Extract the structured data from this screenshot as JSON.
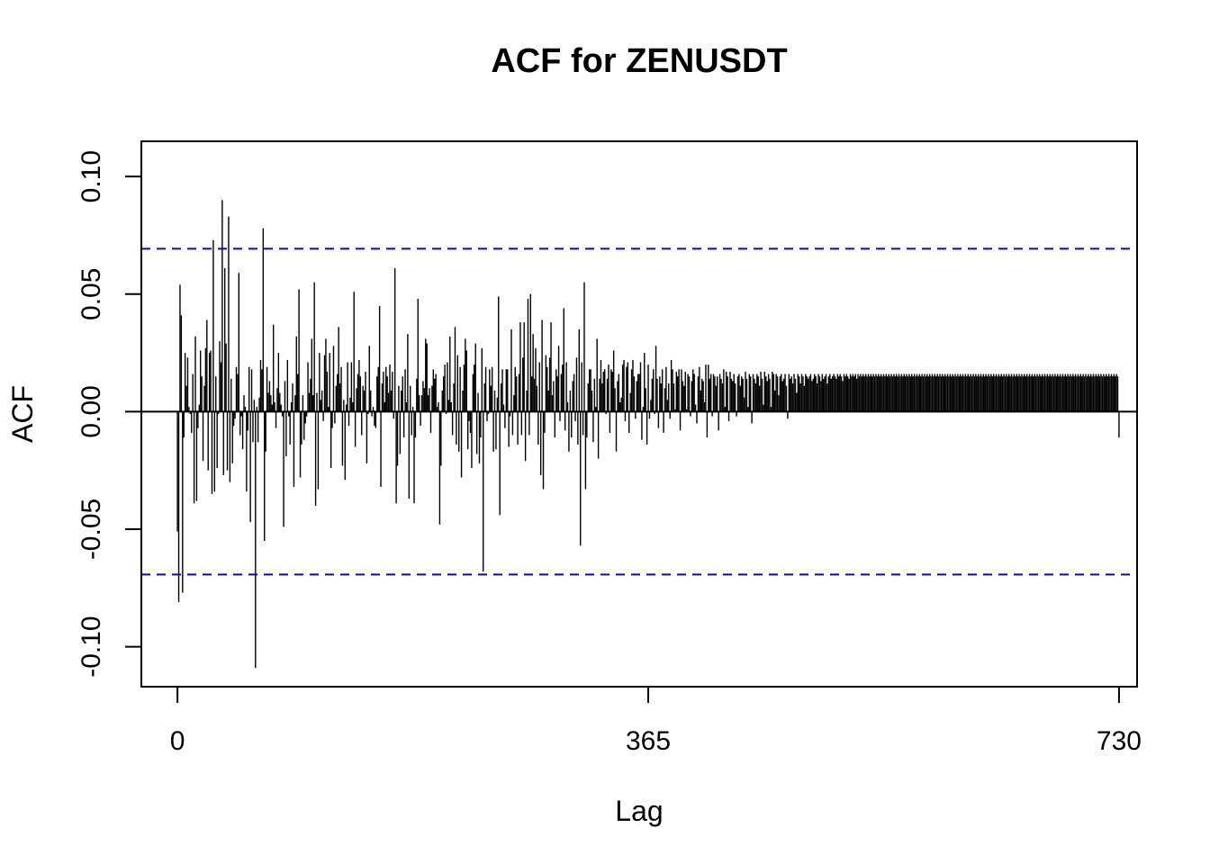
{
  "chart_data": {
    "type": "bar",
    "title": "ACF for ZENUSDT",
    "xlabel": "Lag",
    "ylabel": "ACF",
    "xlim": [
      -28,
      744
    ],
    "ylim": [
      -0.117,
      0.115
    ],
    "x_ticks": [
      0,
      365,
      730
    ],
    "x_tick_labels": [
      "0",
      "365",
      "730"
    ],
    "y_ticks": [
      -0.1,
      -0.05,
      0.0,
      0.05,
      0.1
    ],
    "y_tick_labels": [
      "-0.10",
      "-0.05",
      "0.00",
      "0.05",
      "0.10"
    ],
    "confidence_bounds": [
      -0.0693,
      0.0693
    ],
    "zero_line": 0,
    "grid": false,
    "legend": "none",
    "colors": {
      "bars": "#000000",
      "bounds": "#0000ff",
      "axis": "#000000"
    },
    "lags": [
      0,
      730
    ],
    "values": [
      -0.051,
      -0.081,
      0.054,
      0.041,
      -0.077,
      -0.011,
      0.025,
      0.011,
      0.023,
      0.002,
      -0.001,
      -0.009,
      0.016,
      -0.039,
      0.032,
      -0.038,
      -0.007,
      0.003,
      0.026,
      0.015,
      -0.021,
      0.011,
      0.027,
      0.039,
      -0.025,
      0.025,
      0.026,
      -0.035,
      0.073,
      -0.034,
      0.015,
      -0.024,
      -0.001,
      0.03,
      0.021,
      0.09,
      -0.027,
      0.061,
      0.029,
      -0.025,
      0.083,
      -0.03,
      0.014,
      -0.022,
      -0.006,
      -0.003,
      0.019,
      0.016,
      0.059,
      -0.01,
      -0.002,
      -0.016,
      0.007,
      0.002,
      -0.034,
      -0.008,
      0.019,
      -0.047,
      0.018,
      -0.013,
      0.005,
      -0.109,
      0.002,
      -0.013,
      0.006,
      0.022,
      0.018,
      0.078,
      -0.055,
      -0.017,
      0.019,
      0.008,
      0.013,
      0.007,
      0.003,
      0.037,
      0.004,
      -0.007,
      0.01,
      0.025,
      0.008,
      0.003,
      -0.002,
      -0.049,
      0.013,
      -0.019,
      0.022,
      -0.002,
      -0.014,
      0.004,
      0.012,
      -0.032,
      0.007,
      0.032,
      0.016,
      0.052,
      -0.028,
      -0.014,
      0.007,
      -0.012,
      -0.005,
      -0.002,
      0.021,
      0.008,
      0.014,
      0.031,
      0.007,
      0.055,
      -0.04,
      0.008,
      -0.033,
      0.025,
      0.005,
      0.009,
      -0.004,
      0.024,
      0.031,
      0.017,
      0.002,
      0.025,
      -0.024,
      -0.007,
      0.028,
      -0.005,
      0.011,
      0.016,
      0.036,
      0.012,
      0.019,
      -0.023,
      0.005,
      -0.029,
      0.003,
      0.021,
      -0.006,
      0.006,
      0.021,
      0.004,
      0.051,
      -0.015,
      0.01,
      0.016,
      0.022,
      0.015,
      -0.01,
      0.011,
      0.009,
      0.017,
      -0.022,
      -0.001,
      0.028,
      0.009,
      -0.002,
      0.002,
      -0.006,
      -0.007,
      0.015,
      0.019,
      0.045,
      -0.032,
      0.012,
      0.017,
      0.004,
      0.019,
      0.015,
      0.008,
      0.02,
      0.009,
      0.017,
      -0.003,
      0.061,
      -0.039,
      -0.023,
      0.011,
      -0.018,
      0.009,
      0.015,
      -0.011,
      0.018,
      0.004,
      0.033,
      -0.037,
      0.011,
      -0.01,
      0.002,
      -0.039,
      -0.011,
      0.014,
      0.048,
      0.007,
      -0.006,
      0.007,
      0.013,
      0.01,
      0.031,
      0.029,
      0.007,
      0.01,
      -0.009,
      0.011,
      0.018,
      0.014,
      0.016,
      0.002,
      0.004,
      -0.048,
      -0.023,
      0.009,
      0.015,
      0.02,
      -0.001,
      0.021,
      0.005,
      0.032,
      0.004,
      -0.01,
      0.012,
      0.036,
      -0.014,
      0.024,
      -0.017,
      0.019,
      -0.028,
      0.009,
      0.02,
      0.031,
      0.026,
      -0.016,
      -0.004,
      -0.009,
      -0.024,
      0.016,
      0.02,
      0.029,
      -0.018,
      0.008,
      -0.022,
      -0.011,
      0.027,
      -0.068,
      0.012,
      0.019,
      -0.004,
      -0.001,
      0.018,
      0.011,
      0.019,
      -0.017,
      0.009,
      -0.016,
      0.006,
      0.049,
      -0.044,
      0.012,
      0.018,
      0.003,
      -0.007,
      0.018,
      0.018,
      -0.015,
      -0.002,
      0.035,
      -0.01,
      0.007,
      0.019,
      0.015,
      -0.014,
      0.016,
      0.038,
      -0.01,
      0.023,
      0.038,
      -0.021,
      0.009,
      0.048,
      -0.01,
      0.05,
      0.015,
      0.033,
      0.014,
      0.027,
      0.011,
      -0.014,
      0.021,
      -0.027,
      0.039,
      -0.033,
      -0.009,
      0.024,
      0.019,
      0.009,
      0.023,
      0.038,
      0.007,
      0.013,
      -0.011,
      0.018,
      0.015,
      0.028,
      -0.004,
      0.016,
      0.02,
      0.044,
      -0.008,
      0.021,
      0.004,
      -0.017,
      0.009,
      -0.011,
      0.013,
      0.016,
      -0.004,
      0.023,
      -0.014,
      0.035,
      -0.057,
      0.021,
      -0.01,
      0.055,
      -0.033,
      -0.011,
      0.012,
      0.018,
      0.018,
      0.009,
      -0.013,
      0.014,
      0.002,
      0.031,
      -0.02,
      0.014,
      0.022,
      0.012,
      0.017,
      0.018,
      -0.001,
      0.014,
      0.02,
      -0.009,
      0.018,
      0.017,
      0.026,
      0.01,
      -0.017,
      0.013,
      0.016,
      0.004,
      0.006,
      0.02,
      0.022,
      -0.004,
      0.019,
      0.021,
      -0.009,
      0.008,
      0.018,
      0.022,
      0.015,
      -0.003,
      0.013,
      0.016,
      0.016,
      0.021,
      -0.012,
      0.002,
      0.025,
      0.01,
      -0.014,
      0.02,
      -0.003,
      0.005,
      0.014,
      0.018,
      -0.001,
      0.028,
      0.014,
      -0.007,
      0.015,
      0.012,
      0.018,
      -0.009,
      0.01,
      0.019,
      0.005,
      0.012,
      -0.003,
      0.022,
      0.018,
      0.012,
      0.001,
      0.017,
      0.015,
      0.018,
      -0.008,
      0.018,
      0.013,
      0.011,
      0.017,
      0.001,
      0.016,
      0.015,
      -0.002,
      0.013,
      0.018,
      0.016,
      0.003,
      -0.005,
      0.015,
      0.019,
      0.009,
      0.014,
      0.013,
      0.004,
      0.02,
      -0.011,
      0.02,
      0.014,
      0.016,
      -0.002,
      0.016,
      0.015,
      0.011,
      0.015,
      -0.008,
      0.016,
      0.014,
      0.012,
      0.018,
      0.002,
      0.017,
      0.015,
      -0.004,
      0.017,
      0.014,
      0.013,
      0.016,
      0.012,
      -0.002,
      0.015,
      0.016,
      0.011,
      0.015,
      0.014,
      0.006,
      0.017,
      0.014,
      0.002,
      0.016,
      0.015,
      -0.005,
      0.016,
      0.014,
      0.012,
      0.016,
      0.015,
      0.011,
      0.017,
      0.014,
      0.003,
      0.017,
      0.015,
      0.013,
      0.016,
      0.014,
      0.002,
      0.017,
      0.016,
      0.009,
      0.016,
      0.015,
      0.007,
      0.015,
      0.016,
      0.013,
      0.014,
      0.016,
      0.011,
      -0.003,
      0.016,
      0.014,
      0.015,
      0.012,
      0.016,
      0.014,
      0.008,
      0.016,
      0.015,
      0.012,
      0.016,
      0.015,
      0.011,
      0.016,
      0.015,
      0.014,
      0.015,
      0.016,
      0.013,
      0.014,
      0.016,
      0.015,
      0.012,
      0.016,
      0.015,
      0.013,
      0.016,
      0.014,
      0.015,
      0.016,
      0.012,
      0.015,
      0.016,
      0.014,
      0.015,
      0.016,
      0.015,
      0.014,
      0.016,
      0.015,
      0.016,
      0.015,
      0.013,
      0.016,
      0.015,
      0.016,
      0.015,
      0.014,
      0.016,
      0.015,
      0.016,
      0.015,
      0.016,
      0.014,
      0.016,
      0.015,
      0.016,
      0.015,
      0.016,
      0.015,
      0.016,
      0.015,
      0.016,
      0.015,
      0.016,
      0.015,
      0.016,
      0.015,
      0.016,
      0.015,
      0.016,
      0.015,
      0.016,
      0.015,
      0.016,
      0.015,
      0.016,
      0.015,
      0.016,
      0.015,
      0.016,
      0.015,
      0.016,
      0.015,
      0.016,
      0.015,
      0.016,
      0.015,
      0.016,
      0.015,
      0.016,
      0.015,
      0.016,
      0.015,
      0.016,
      0.015,
      0.016,
      0.015,
      0.016,
      0.015,
      0.016,
      0.015,
      0.016,
      0.015,
      0.016,
      0.015,
      0.016,
      0.015,
      0.016,
      0.015,
      0.016,
      0.015,
      0.016,
      0.015,
      0.016,
      0.015,
      0.016,
      0.015,
      0.016,
      0.015,
      0.016,
      0.015,
      0.016,
      0.015,
      0.016,
      0.015,
      0.016,
      0.015,
      0.016,
      0.015,
      0.016,
      0.015,
      0.016,
      0.015,
      0.016,
      0.015,
      0.016,
      0.015,
      0.016,
      0.015,
      0.016,
      0.015,
      0.016,
      0.015,
      0.016,
      0.015,
      0.016,
      0.015,
      0.016,
      0.015,
      0.016,
      0.015,
      0.016,
      0.015,
      0.016,
      0.015,
      0.016,
      0.015,
      0.016,
      0.015,
      0.016,
      0.015,
      0.016,
      0.015,
      0.016,
      0.015,
      0.016,
      0.015,
      0.016,
      0.015,
      0.016,
      0.015,
      0.016,
      0.015,
      0.016,
      0.015,
      0.016,
      0.015,
      0.016,
      0.015,
      0.016,
      0.015,
      0.016,
      0.015,
      0.016,
      0.015,
      0.016,
      0.015,
      0.016,
      0.015,
      0.016,
      0.015,
      0.016,
      0.015,
      0.016,
      0.015,
      0.016,
      0.015,
      0.016,
      0.015,
      0.016,
      0.015,
      0.016,
      0.015,
      0.016,
      0.015,
      0.016,
      0.015,
      0.016,
      0.015,
      0.016,
      0.015,
      0.016,
      0.015,
      0.016,
      0.015,
      0.016,
      0.015,
      0.016,
      0.015,
      0.016,
      0.015,
      0.016,
      0.015,
      0.016,
      0.015,
      0.016,
      0.015,
      0.016,
      0.015,
      0.016,
      0.015,
      0.016,
      0.015,
      0.016,
      0.015,
      0.016,
      0.015,
      0.016,
      0.015,
      0.016,
      0.015,
      0.016,
      0.015,
      0.016,
      0.015,
      0.016,
      0.015,
      0.016,
      0.015,
      0.016,
      0.015,
      0.016,
      0.015,
      0.016,
      0.015,
      0.016,
      0.015,
      -0.011
    ]
  }
}
